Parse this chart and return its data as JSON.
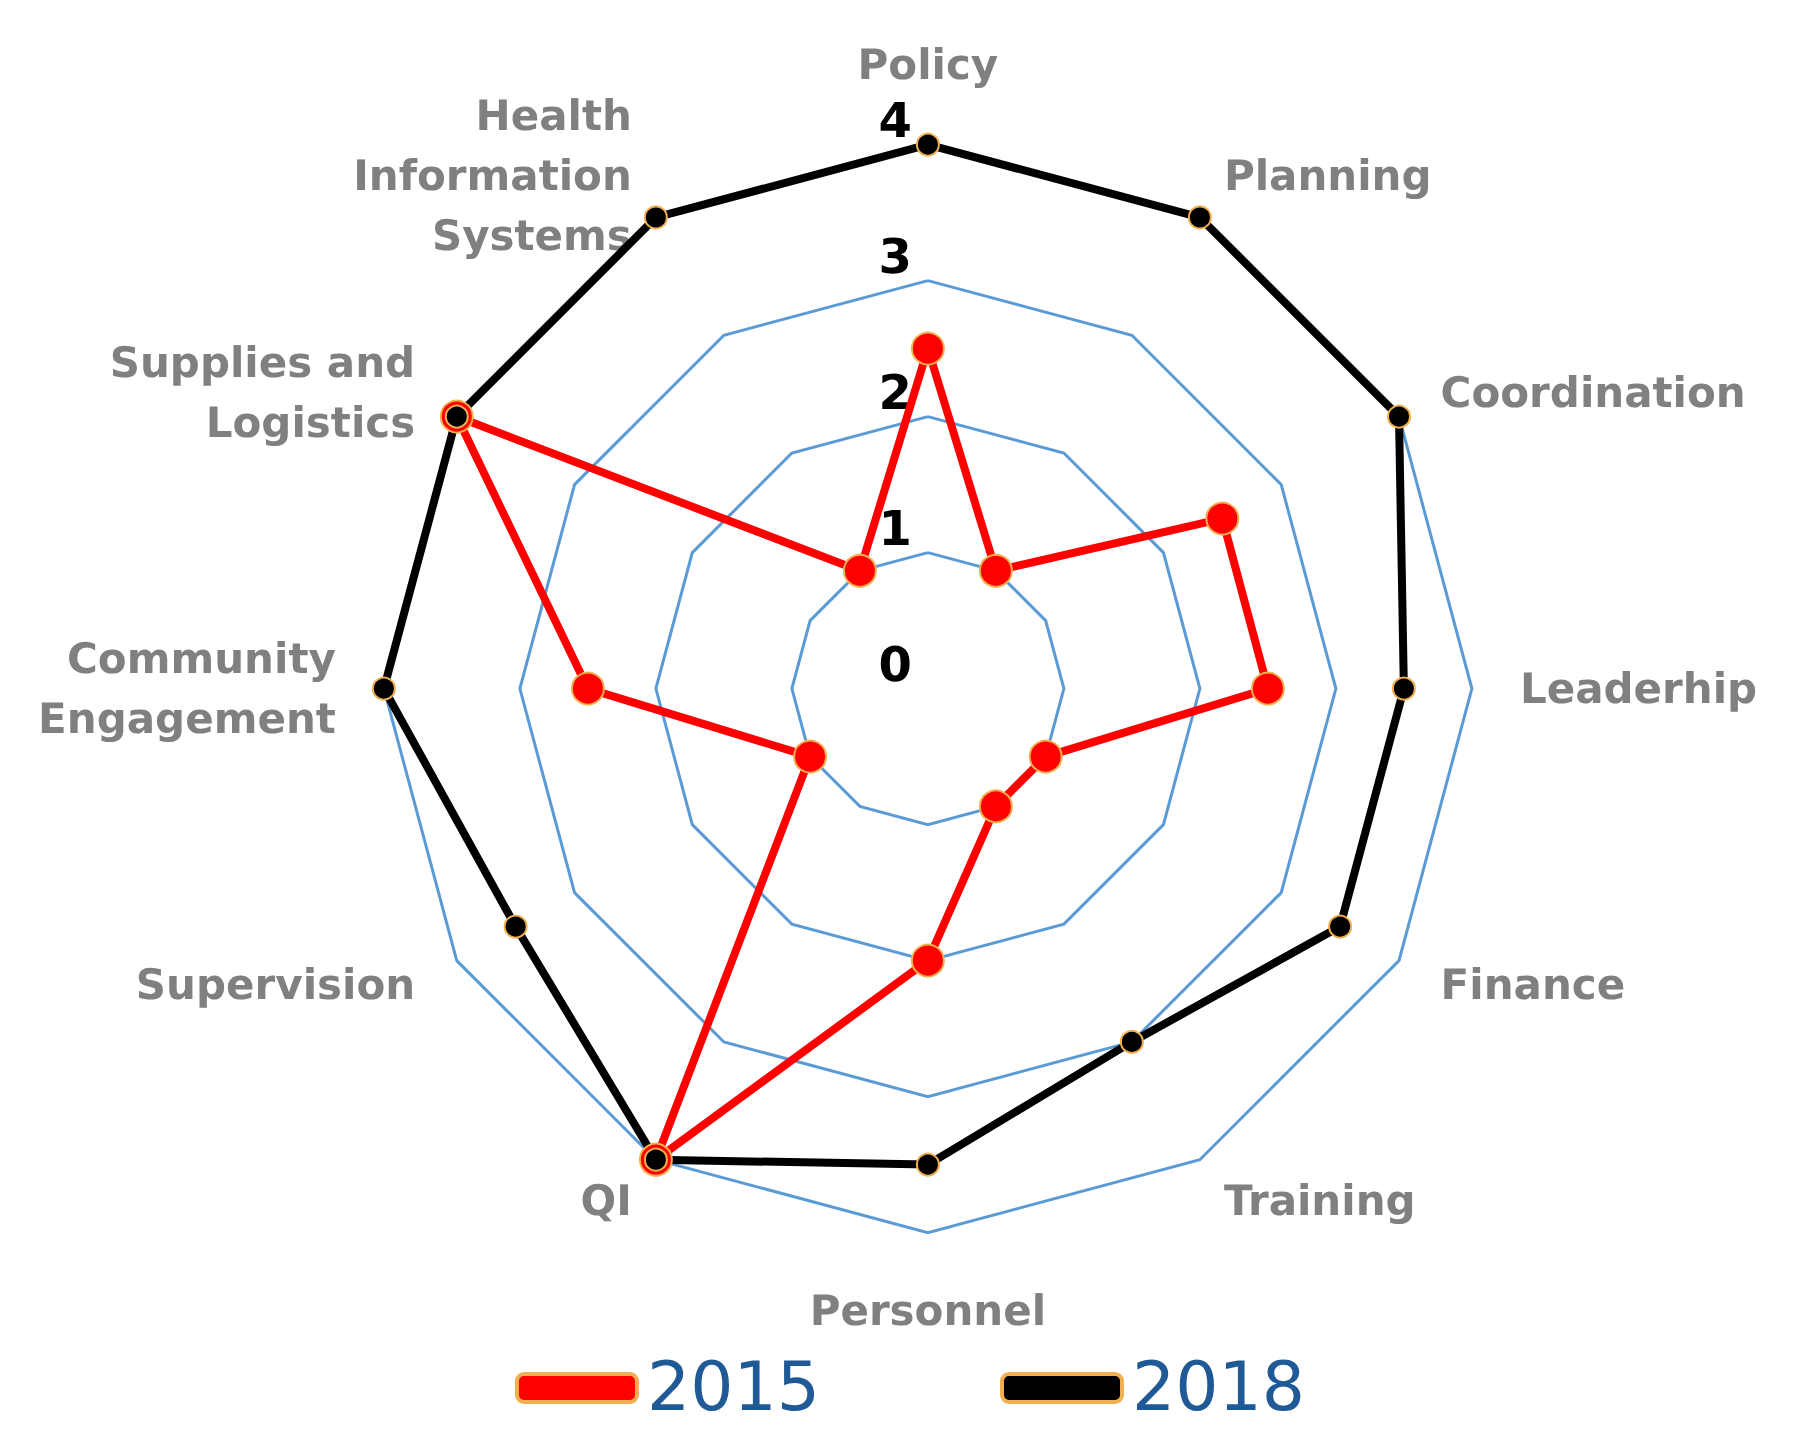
{
  "chart_data": {
    "type": "radar",
    "categories": [
      "Policy",
      "Planning",
      "Coordination",
      "Leaderhip",
      "Finance",
      "Training",
      "Personnel",
      "QI",
      "Supervision",
      "Community\nEngagement",
      "Supplies and\nLogistics",
      "Health\nInformation\nSystems"
    ],
    "series": [
      {
        "name": "2015",
        "color": "#ff0000",
        "values": [
          2.5,
          1,
          2.5,
          2.5,
          1,
          1,
          2,
          4,
          1,
          2.5,
          4,
          1
        ]
      },
      {
        "name": "2018",
        "color": "#000000",
        "values": [
          4,
          4,
          4,
          3.5,
          3.5,
          3,
          3.5,
          4,
          3.5,
          4,
          4,
          4
        ]
      }
    ],
    "ylim": [
      0,
      4
    ],
    "yticks": [
      0,
      1,
      2,
      3,
      4
    ],
    "grid": true,
    "legend": "bottom",
    "marker": "circle",
    "line_style": "solid"
  }
}
